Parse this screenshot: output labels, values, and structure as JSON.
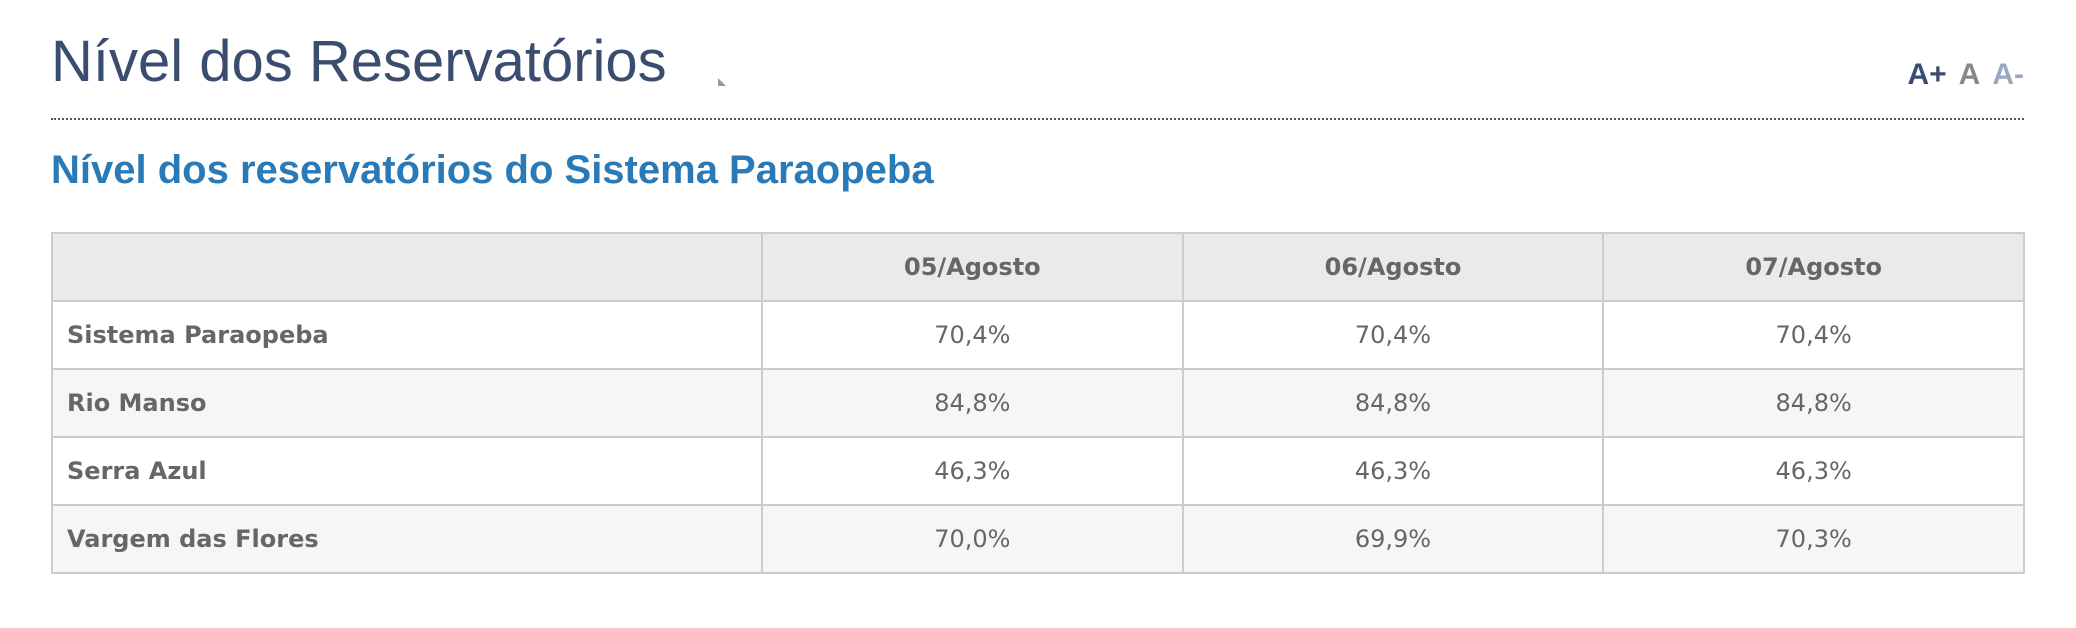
{
  "header": {
    "title": "Nível dos Reservatórios",
    "font_controls": [
      "A+",
      "A",
      "A-"
    ]
  },
  "subtitle": "Nível dos reservatórios do Sistema Paraopeba",
  "table": {
    "columns": [
      "05/Agosto",
      "06/Agosto",
      "07/Agosto"
    ],
    "rows": [
      [
        "Sistema Paraopeba",
        "70,4%",
        "70,4%",
        "70,4%"
      ],
      [
        "Rio Manso",
        "84,8%",
        "84,8%",
        "84,8%"
      ],
      [
        "Serra Azul",
        "46,3%",
        "46,3%",
        "46,3%"
      ],
      [
        "Vargem das Flores",
        "70,0%",
        "69,9%",
        "70,3%"
      ]
    ]
  }
}
